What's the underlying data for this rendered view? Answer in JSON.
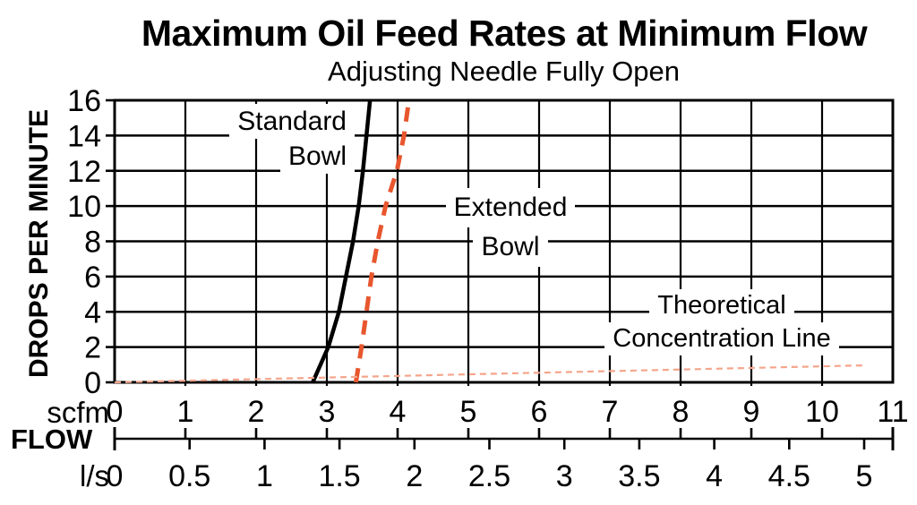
{
  "chart_data": {
    "type": "line",
    "title": "Maximum Oil Feed Rates at Minimum Flow",
    "subtitle": "Adjusting Needle Fully Open",
    "flow_label": "FLOW",
    "y_axis": {
      "label": "DROPS PER MINUTE",
      "min": 0,
      "max": 16,
      "tick_step": 2,
      "ticks": [
        "0",
        "2",
        "4",
        "6",
        "8",
        "10",
        "12",
        "14",
        "16"
      ],
      "grid": true
    },
    "x_axis_scfm": {
      "unit": "scfm",
      "min": 0,
      "max": 11,
      "ticks": [
        "0",
        "1",
        "2",
        "3",
        "4",
        "5",
        "6",
        "7",
        "8",
        "9",
        "10",
        "11"
      ],
      "grid": true
    },
    "x_axis_ls": {
      "unit": "l/s",
      "min": 0,
      "max": 5,
      "ticks": [
        "0",
        "0.5",
        "1",
        "1.5",
        "2",
        "2.5",
        "3",
        "3.5",
        "4",
        "4.5",
        "5"
      ],
      "scfm_per_ls": 2.119
    },
    "series": [
      {
        "name": "Standard Bowl",
        "style": "solid",
        "color": "#000000",
        "points": [
          [
            2.8,
            0
          ],
          [
            3.02,
            2
          ],
          [
            3.17,
            4
          ],
          [
            3.27,
            6
          ],
          [
            3.37,
            8
          ],
          [
            3.45,
            10
          ],
          [
            3.51,
            12
          ],
          [
            3.56,
            14
          ],
          [
            3.61,
            16
          ]
        ]
      },
      {
        "name": "Extended Bowl",
        "style": "dashed",
        "color": "#E8562E",
        "points": [
          [
            3.41,
            0
          ],
          [
            3.49,
            2
          ],
          [
            3.56,
            4
          ],
          [
            3.63,
            6
          ],
          [
            3.72,
            8
          ],
          [
            3.83,
            10
          ],
          [
            3.99,
            12
          ],
          [
            4.09,
            14
          ],
          [
            4.16,
            16
          ]
        ]
      },
      {
        "name": "Theoretical Concentration Line",
        "style": "fine-dashed",
        "color": "#F4A58B",
        "points": [
          [
            0,
            0
          ],
          [
            10.57,
            0.96
          ]
        ]
      }
    ],
    "annotations": [
      {
        "id": "standard-bowl",
        "lines": [
          "Standard",
          "Bowl"
        ]
      },
      {
        "id": "extended-bowl",
        "lines": [
          "Extended",
          "Bowl"
        ]
      },
      {
        "id": "theoretical",
        "lines": [
          "Theoretical",
          "Concentration Line"
        ]
      }
    ]
  }
}
